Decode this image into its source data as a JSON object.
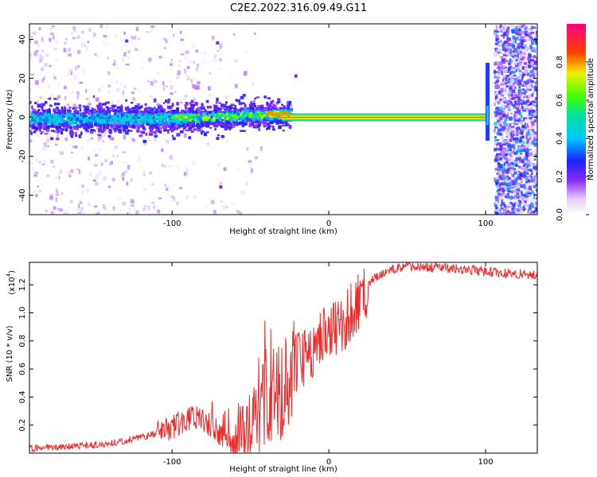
{
  "figure": {
    "title": "C2E2.2022.316.09.49.G11"
  },
  "colors": {
    "snr_line": "#ee2c2c",
    "axis": "#000000",
    "background": "#ffffff"
  },
  "chart_data": [
    {
      "type": "heatmap",
      "title": "C2E2.2022.316.09.49.G11",
      "xlabel": "Height of straight line (km)",
      "ylabel": "Frequency (Hz)",
      "xlim": [
        -191,
        133
      ],
      "ylim": [
        -50,
        48
      ],
      "xticks": [
        -100,
        0,
        100
      ],
      "xtick_labels": [
        "-100",
        "0",
        "100"
      ],
      "yticks": [
        -40,
        -20,
        0,
        20,
        40
      ],
      "ytick_labels": [
        "-40",
        "-20",
        "0",
        "20",
        "40"
      ],
      "colorbar": {
        "label": "Normalized spectral amplitude",
        "range": [
          0,
          1
        ],
        "ticks": [
          0.0,
          0.2,
          0.4,
          0.6,
          0.8
        ],
        "tick_labels": [
          "0.0",
          "0.2",
          "0.4",
          "0.6",
          "0.8"
        ],
        "colormap": "rainbow (white-violet-blue-cyan-green-yellow-red-magenta)"
      },
      "features": {
        "signal_line": {
          "x_range": [
            -30,
            100
          ],
          "frequency_hz": 0,
          "amplitude": 0.9
        },
        "scattered_region": {
          "x_range": [
            -191,
            -30
          ],
          "frequency_spread_hz": [
            -8,
            8
          ],
          "amplitude": 0.3
        },
        "noise_regions": [
          {
            "x_range": [
              -191,
              -120
            ]
          },
          {
            "x_range": [
              105,
              133
            ]
          }
        ]
      }
    },
    {
      "type": "line",
      "xlabel": "Height of straight line (km)",
      "ylabel": "SNR (10 * v/v)",
      "y_scale_label": "(x10",
      "y_scale_exponent": "4",
      "y_scale_close": ")",
      "xlim": [
        -191,
        133
      ],
      "ylim": [
        0,
        13600
      ],
      "xticks": [
        -100,
        0,
        100
      ],
      "xtick_labels": [
        "-100",
        "0",
        "100"
      ],
      "yticks": [
        2000,
        4000,
        6000,
        8000,
        10000,
        12000
      ],
      "ytick_labels": [
        "0.2",
        "0.4",
        "0.6",
        "0.8",
        "1.0",
        "1.2"
      ],
      "series": [
        {
          "x": [
            -191,
            -180,
            -170,
            -160,
            -150,
            -140,
            -130,
            -120,
            -110,
            -100,
            -95,
            -90,
            -85,
            -80,
            -75,
            -70,
            -65,
            -60,
            -55,
            -50,
            -45,
            -40,
            -35,
            -30,
            -25,
            -20,
            -15,
            -10,
            -5,
            0,
            5,
            10,
            15,
            20,
            25,
            30,
            35,
            40,
            45,
            50,
            60,
            70,
            80,
            90,
            100,
            110,
            120,
            133
          ],
          "y": [
            300,
            400,
            450,
            500,
            600,
            700,
            900,
            1100,
            1400,
            1800,
            2200,
            2500,
            2700,
            2300,
            2000,
            1500,
            800,
            400,
            1000,
            2000,
            3000,
            4000,
            4000,
            4500,
            5500,
            6500,
            7000,
            7500,
            8000,
            8500,
            9000,
            9500,
            10000,
            11000,
            12000,
            12600,
            12900,
            13100,
            13200,
            13300,
            13250,
            13200,
            13150,
            13050,
            12950,
            12850,
            12800,
            12700
          ]
        }
      ],
      "grid": false
    }
  ]
}
